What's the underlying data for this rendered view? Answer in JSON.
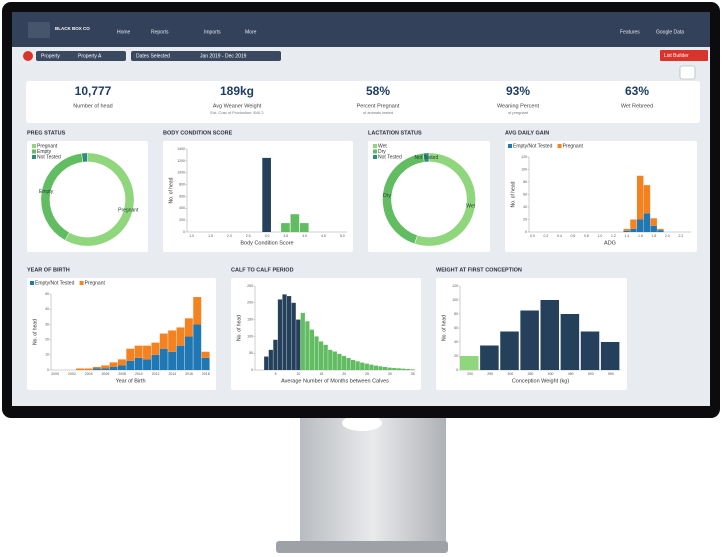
{
  "nav": {
    "brand": "BLACK BOX CO",
    "items": [
      "Home",
      "Reports",
      "Imports",
      "More"
    ],
    "right": [
      "Features",
      "Google Data"
    ]
  },
  "filters": {
    "property_label": "Property",
    "property_value": "Property A",
    "dates_label": "Dates Selected",
    "dates_value": "Jan 2019 - Dec 2019",
    "button": "List Builder"
  },
  "kpis": [
    {
      "value": "10,777",
      "label": "Number of head"
    },
    {
      "value": "189kg",
      "label": "Avg Weaner Weight",
      "sub": "Est. Cost of Production: $40.2"
    },
    {
      "value": "58%",
      "label": "Percent Pregnant",
      "sub": "of animals tested"
    },
    {
      "value": "93%",
      "label": "Weaning Percent",
      "sub": "of pregnant"
    },
    {
      "value": "63%",
      "label": "Wet Rebreed"
    }
  ],
  "charts": [
    {
      "type": "pie",
      "title": "PREG STATUS",
      "labels": [
        "Pregnant",
        "Empty",
        "Not Tested"
      ],
      "values": [
        58,
        40,
        2
      ],
      "colors": [
        "#8fd67d",
        "#62bd62",
        "#2f8f7c"
      ],
      "slice_labels": [
        true,
        true,
        false
      ]
    },
    {
      "type": "bar",
      "title": "BODY CONDITION SCORE",
      "x_label": "Body Condition Score",
      "y_label": "No. of head",
      "categories": [
        "1.0",
        null,
        "1.5",
        null,
        "2.0",
        null,
        "2.5",
        null,
        "3.0",
        null,
        "3.5",
        null,
        "4.0",
        null,
        "4.5",
        null,
        "5.0"
      ],
      "values": [
        0,
        0,
        0,
        0,
        0,
        0,
        0,
        0,
        1250,
        0,
        150,
        300,
        150,
        0,
        0,
        0,
        0
      ],
      "colors": [
        "#62bd62",
        "#62bd62",
        "#62bd62",
        "#62bd62",
        "#62bd62",
        "#62bd62",
        "#62bd62",
        "#62bd62",
        "#24405a",
        "#62bd62",
        "#62bd62",
        "#62bd62",
        "#62bd62",
        "#62bd62",
        "#62bd62",
        "#62bd62",
        "#62bd62"
      ],
      "ylim": [
        0,
        1400
      ],
      "yticks": [
        0,
        200,
        400,
        600,
        800,
        1000,
        1200,
        1400
      ]
    },
    {
      "type": "pie",
      "title": "LACTATION STATUS",
      "labels": [
        "Wet",
        "Dry",
        "Not Tested"
      ],
      "values": [
        55,
        43,
        2
      ],
      "colors": [
        "#8fd67d",
        "#62bd62",
        "#2f8f7c"
      ],
      "slice_labels": [
        true,
        true,
        true
      ]
    },
    {
      "type": "bar",
      "title": "AVG DAILY GAIN",
      "x_label": "ADG",
      "y_label": "No. of head",
      "stacked": true,
      "categories": [
        "0.0",
        null,
        "0.2",
        null,
        "0.4",
        null,
        "0.6",
        null,
        "0.8",
        null,
        "1.0",
        null,
        "1.2",
        null,
        "1.4",
        null,
        "1.6",
        null,
        "1.8",
        null,
        "2.0",
        null,
        "2.2",
        null
      ],
      "series": [
        {
          "name": "Empty/Not Tested",
          "color": "#1f77b4",
          "values": [
            0,
            0,
            0,
            0,
            0,
            0,
            0,
            0,
            0,
            0,
            0,
            0,
            0,
            0,
            2,
            5,
            20,
            30,
            10,
            3,
            0,
            0,
            0,
            0
          ]
        },
        {
          "name": "Pregnant",
          "color": "#f58220",
          "values": [
            0,
            0,
            0,
            0,
            0,
            0,
            0,
            0,
            0,
            0,
            0,
            0,
            0,
            0,
            3,
            15,
            70,
            45,
            12,
            2,
            0,
            0,
            0,
            0
          ]
        }
      ],
      "ylim": [
        0,
        120
      ],
      "yticks": [
        0,
        20,
        40,
        60,
        80,
        100,
        120
      ]
    },
    {
      "type": "bar",
      "title": "YEAR OF BIRTH",
      "x_label": "Year of Birth",
      "y_label": "No. of head",
      "stacked": true,
      "categories": [
        "2000",
        null,
        "2002",
        null,
        "2004",
        null,
        "2006",
        null,
        "2008",
        null,
        "2010",
        null,
        "2012",
        null,
        "2014",
        null,
        "2016",
        null,
        "2018"
      ],
      "series": [
        {
          "name": "Empty/Not Tested",
          "color": "#1f77b4",
          "values": [
            0,
            0,
            0,
            0,
            0,
            1,
            1,
            2,
            3,
            6,
            8,
            7,
            10,
            14,
            12,
            16,
            22,
            30,
            8
          ]
        },
        {
          "name": "Pregnant",
          "color": "#f58220",
          "values": [
            0,
            0,
            0,
            1,
            1,
            1,
            2,
            3,
            4,
            8,
            8,
            9,
            8,
            10,
            14,
            12,
            12,
            18,
            4
          ]
        }
      ],
      "ylim": [
        0,
        50
      ],
      "yticks": [
        0,
        10,
        20,
        30,
        40,
        50
      ]
    },
    {
      "type": "bar",
      "title": "CALF TO CALF PERIOD",
      "x_label": "Average Number of Months between Calves",
      "y_label": "No. of head",
      "categories": [
        null,
        null,
        null,
        null,
        "5",
        null,
        null,
        null,
        null,
        "10",
        null,
        null,
        null,
        null,
        "15",
        null,
        null,
        null,
        null,
        "20",
        null,
        null,
        null,
        null,
        "25",
        null,
        null,
        null,
        null,
        "30",
        null,
        null,
        null,
        null,
        "35"
      ],
      "values": [
        0,
        0,
        40,
        60,
        90,
        210,
        225,
        220,
        200,
        150,
        170,
        145,
        120,
        100,
        85,
        75,
        60,
        55,
        48,
        42,
        36,
        30,
        26,
        22,
        19,
        16,
        13,
        11,
        9,
        7,
        6,
        5,
        4,
        3,
        2
      ],
      "colors": [
        "#24405a",
        "#24405a",
        "#24405a",
        "#24405a",
        "#24405a",
        "#24405a",
        "#24405a",
        "#24405a",
        "#24405a",
        "#24405a",
        "#62bd62",
        "#62bd62",
        "#62bd62",
        "#62bd62",
        "#62bd62",
        "#62bd62",
        "#62bd62",
        "#62bd62",
        "#62bd62",
        "#62bd62",
        "#62bd62",
        "#62bd62",
        "#62bd62",
        "#62bd62",
        "#62bd62",
        "#62bd62",
        "#62bd62",
        "#62bd62",
        "#62bd62",
        "#62bd62",
        "#62bd62",
        "#62bd62",
        "#62bd62",
        "#62bd62",
        "#62bd62"
      ],
      "ylim": [
        0,
        250
      ],
      "yticks": [
        0,
        50,
        100,
        150,
        200,
        250
      ]
    },
    {
      "type": "bar",
      "title": "WEIGHT AT FIRST CONCEPTION",
      "x_label": "Conception Weight (kg)",
      "y_label": "No. of head",
      "categories": [
        "200",
        "250",
        "300",
        "350",
        "400",
        "450",
        "500",
        "550"
      ],
      "values": [
        20,
        35,
        55,
        85,
        100,
        80,
        55,
        40
      ],
      "colors": [
        "#8fd67d",
        "#24405a",
        "#24405a",
        "#24405a",
        "#24405a",
        "#24405a",
        "#24405a",
        "#24405a"
      ],
      "ylim": [
        0,
        120
      ],
      "yticks": [
        0,
        20,
        40,
        60,
        80,
        100,
        120
      ]
    }
  ]
}
